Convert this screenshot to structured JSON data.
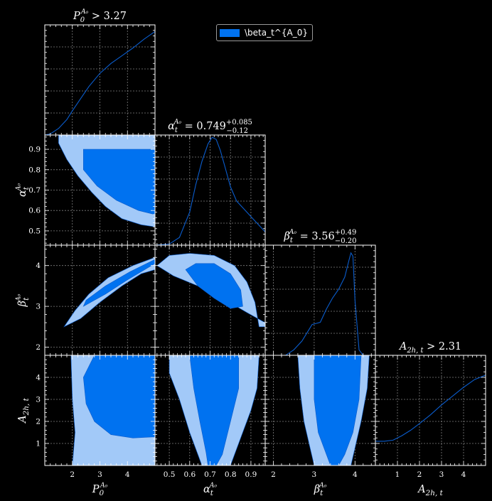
{
  "colors": {
    "inner": "#0072f0",
    "outer": "#a2c9f8",
    "line": "#0a5ccc",
    "background": "#000000",
    "axes": "#ffffff",
    "grid": "#aaaaaa"
  },
  "legend": {
    "label": "\\beta_t^{A_0}",
    "placement": "top-center"
  },
  "chart_data": {
    "type": "corner",
    "grid": true,
    "parameters": [
      {
        "key": "P0",
        "name": "P",
        "sub": "0",
        "sup": "A₀",
        "range": [
          1.0,
          5.0
        ],
        "ticks": [
          2,
          3,
          4
        ],
        "tick_labels": [
          "2",
          "3",
          "4"
        ],
        "title_pre": "",
        "title_rel": " > ",
        "title_value": "3.27",
        "title_plus": "",
        "title_minus": ""
      },
      {
        "key": "alpha",
        "name": "α",
        "sub": "t",
        "sup": "A₀",
        "range": [
          0.43,
          0.97
        ],
        "ticks": [
          0.5,
          0.6,
          0.7,
          0.8,
          0.9
        ],
        "tick_labels": [
          "0.5",
          "0.6",
          "0.7",
          "0.8",
          "0.9"
        ],
        "title_pre": "",
        "title_rel": " = ",
        "title_value": "0.749",
        "title_plus": "+0.085",
        "title_minus": "−0.12"
      },
      {
        "key": "beta",
        "name": "β",
        "sub": "t",
        "sup": "A₀",
        "range": [
          1.8,
          4.5
        ],
        "ticks": [
          2,
          3,
          4
        ],
        "tick_labels": [
          "2",
          "3",
          "4"
        ],
        "title_pre": "",
        "title_rel": " = ",
        "title_value": "3.56",
        "title_plus": "+0.49",
        "title_minus": "−0.20"
      },
      {
        "key": "A2h",
        "name": "A",
        "sub": "2h, t",
        "sup": "",
        "range": [
          0.0,
          5.0
        ],
        "ticks": [
          1,
          2,
          3,
          4
        ],
        "tick_labels": [
          "1",
          "2",
          "3",
          "4"
        ],
        "title_pre": "",
        "title_rel": " > ",
        "title_value": "2.31",
        "title_plus": "",
        "title_minus": ""
      }
    ],
    "marginals": [
      {
        "param": 0,
        "x": [
          1.0,
          1.2,
          1.5,
          1.8,
          2.0,
          2.3,
          2.6,
          3.0,
          3.4,
          3.8,
          4.2,
          4.6,
          5.0
        ],
        "y": [
          0.0,
          0.01,
          0.06,
          0.14,
          0.22,
          0.33,
          0.44,
          0.56,
          0.65,
          0.72,
          0.79,
          0.87,
          0.94
        ]
      },
      {
        "param": 1,
        "x": [
          0.43,
          0.5,
          0.55,
          0.6,
          0.63,
          0.66,
          0.69,
          0.71,
          0.73,
          0.75,
          0.77,
          0.8,
          0.83,
          0.87,
          0.9,
          0.94,
          0.97
        ],
        "y": [
          0.0,
          0.01,
          0.07,
          0.3,
          0.55,
          0.76,
          0.92,
          0.98,
          0.96,
          0.86,
          0.73,
          0.53,
          0.4,
          0.32,
          0.26,
          0.18,
          0.12
        ]
      },
      {
        "param": 2,
        "x": [
          1.8,
          2.3,
          2.5,
          2.7,
          2.85,
          2.95,
          3.05,
          3.15,
          3.3,
          3.45,
          3.6,
          3.75,
          3.85,
          3.9,
          3.95,
          4.0,
          4.1,
          4.2,
          4.5
        ],
        "y": [
          0.0,
          0.0,
          0.05,
          0.13,
          0.22,
          0.28,
          0.29,
          0.3,
          0.42,
          0.52,
          0.6,
          0.71,
          0.86,
          0.93,
          0.9,
          0.5,
          0.05,
          0.0,
          0.0
        ]
      },
      {
        "param": 3,
        "x": [
          0.0,
          0.4,
          0.8,
          1.2,
          1.6,
          2.0,
          2.5,
          3.0,
          3.5,
          4.0,
          4.5,
          5.0
        ],
        "y": [
          0.22,
          0.22,
          0.23,
          0.27,
          0.32,
          0.38,
          0.46,
          0.55,
          0.63,
          0.71,
          0.78,
          0.82
        ]
      }
    ],
    "contours": [
      {
        "x": 0,
        "y": 1,
        "outer": [
          [
            1.5,
            0.99
          ],
          [
            5.0,
            0.99
          ],
          [
            5.0,
            0.52
          ],
          [
            4.5,
            0.53
          ],
          [
            3.8,
            0.56
          ],
          [
            3.2,
            0.62
          ],
          [
            2.7,
            0.69
          ],
          [
            2.2,
            0.77
          ],
          [
            1.8,
            0.85
          ],
          [
            1.5,
            0.93
          ]
        ],
        "inner": [
          [
            2.4,
            0.9
          ],
          [
            5.0,
            0.9
          ],
          [
            5.0,
            0.58
          ],
          [
            4.4,
            0.6
          ],
          [
            3.6,
            0.65
          ],
          [
            2.9,
            0.72
          ],
          [
            2.4,
            0.8
          ]
        ]
      },
      {
        "x": 0,
        "y": 2,
        "outer": [
          [
            1.7,
            2.5
          ],
          [
            2.3,
            2.7
          ],
          [
            3.0,
            3.1
          ],
          [
            3.8,
            3.5
          ],
          [
            4.5,
            3.8
          ],
          [
            5.0,
            3.9
          ],
          [
            5.0,
            4.2
          ],
          [
            4.2,
            4.0
          ],
          [
            3.3,
            3.7
          ],
          [
            2.6,
            3.3
          ],
          [
            2.1,
            2.9
          ],
          [
            1.8,
            2.6
          ]
        ],
        "inner": [
          [
            2.4,
            3.0
          ],
          [
            3.2,
            3.3
          ],
          [
            4.0,
            3.65
          ],
          [
            5.0,
            4.05
          ],
          [
            5.0,
            4.15
          ],
          [
            4.1,
            3.85
          ],
          [
            3.2,
            3.5
          ],
          [
            2.5,
            3.15
          ]
        ]
      },
      {
        "x": 0,
        "y": 3,
        "outer": [
          [
            2.0,
            0.0
          ],
          [
            5.0,
            0.0
          ],
          [
            5.0,
            5.0
          ],
          [
            1.95,
            5.0
          ],
          [
            2.0,
            3.0
          ],
          [
            2.1,
            1.5
          ]
        ],
        "inner": [
          [
            2.8,
            5.0
          ],
          [
            5.0,
            5.0
          ],
          [
            5.0,
            1.3
          ],
          [
            4.2,
            1.25
          ],
          [
            3.4,
            1.4
          ],
          [
            2.8,
            2.0
          ],
          [
            2.5,
            2.8
          ],
          [
            2.4,
            4.0
          ]
        ]
      },
      {
        "x": 1,
        "y": 2,
        "outer": [
          [
            0.44,
            4.0
          ],
          [
            0.5,
            4.25
          ],
          [
            0.6,
            4.3
          ],
          [
            0.72,
            4.25
          ],
          [
            0.82,
            4.0
          ],
          [
            0.88,
            3.6
          ],
          [
            0.92,
            3.1
          ],
          [
            0.94,
            2.5
          ],
          [
            0.97,
            2.5
          ],
          [
            0.97,
            2.6
          ],
          [
            0.88,
            2.85
          ],
          [
            0.76,
            3.2
          ],
          [
            0.64,
            3.5
          ],
          [
            0.52,
            3.75
          ]
        ],
        "inner": [
          [
            0.58,
            3.9
          ],
          [
            0.63,
            4.05
          ],
          [
            0.72,
            4.05
          ],
          [
            0.8,
            3.8
          ],
          [
            0.85,
            3.4
          ],
          [
            0.86,
            3.0
          ],
          [
            0.8,
            2.95
          ],
          [
            0.72,
            3.2
          ],
          [
            0.64,
            3.5
          ]
        ]
      },
      {
        "x": 1,
        "y": 3,
        "outer": [
          [
            0.5,
            5.0
          ],
          [
            0.94,
            5.0
          ],
          [
            0.93,
            3.5
          ],
          [
            0.9,
            2.5
          ],
          [
            0.86,
            1.5
          ],
          [
            0.82,
            0.5
          ],
          [
            0.8,
            0.0
          ],
          [
            0.66,
            0.0
          ],
          [
            0.64,
            0.5
          ],
          [
            0.6,
            1.5
          ],
          [
            0.55,
            3.0
          ],
          [
            0.5,
            4.2
          ]
        ],
        "inner": [
          [
            0.6,
            5.0
          ],
          [
            0.84,
            5.0
          ],
          [
            0.84,
            3.5
          ],
          [
            0.8,
            2.0
          ],
          [
            0.76,
            0.5
          ],
          [
            0.73,
            0.0
          ],
          [
            0.69,
            0.0
          ],
          [
            0.68,
            0.6
          ],
          [
            0.65,
            2.0
          ],
          [
            0.62,
            3.5
          ]
        ]
      },
      {
        "x": 2,
        "y": 3,
        "outer": [
          [
            2.6,
            5.0
          ],
          [
            4.35,
            5.0
          ],
          [
            4.3,
            3.5
          ],
          [
            4.15,
            2.0
          ],
          [
            4.0,
            0.8
          ],
          [
            3.9,
            0.0
          ],
          [
            3.0,
            0.0
          ],
          [
            2.9,
            0.8
          ],
          [
            2.75,
            2.0
          ],
          [
            2.65,
            3.5
          ]
        ],
        "inner": [
          [
            3.0,
            5.0
          ],
          [
            4.15,
            5.0
          ],
          [
            4.1,
            3.0
          ],
          [
            3.95,
            1.5
          ],
          [
            3.75,
            0.5
          ],
          [
            3.6,
            0.0
          ],
          [
            3.4,
            0.0
          ],
          [
            3.3,
            0.5
          ],
          [
            3.1,
            1.5
          ],
          [
            3.0,
            3.0
          ]
        ]
      }
    ]
  }
}
